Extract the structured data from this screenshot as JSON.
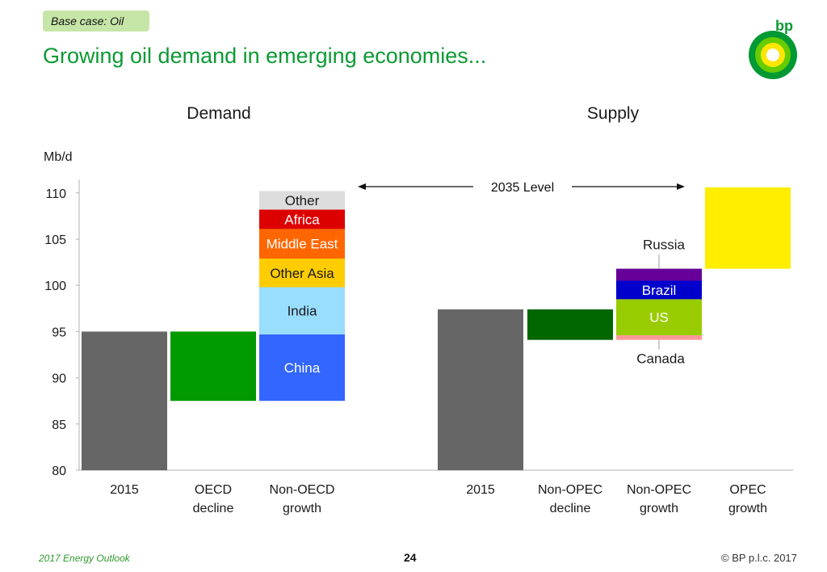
{
  "header": {
    "tag": "Base case: Oil",
    "title": "Growing oil demand in emerging economies..."
  },
  "logo": {
    "text": "bp"
  },
  "footer": {
    "left": "2017 Energy Outlook",
    "page": "24",
    "right": "© BP p.l.c. 2017"
  },
  "colors": {
    "gray": "#666666",
    "oecd": "#009900",
    "china": "#3366ff",
    "india": "#99ddff",
    "other_asia": "#ffcc00",
    "middle_east": "#ff6600",
    "africa": "#dd0000",
    "other": "#dddddd",
    "non_opec_decline": "#006600",
    "canada": "#ff9999",
    "us": "#99cc00",
    "brazil": "#0000cc",
    "russia": "#660099",
    "opec": "#ffee00",
    "title_green": "#0b9a33"
  },
  "chart_data": {
    "type": "bar",
    "subtype": "waterfall",
    "ylabel": "Mb/d",
    "ylim": [
      80,
      111
    ],
    "yticks": [
      80,
      85,
      90,
      95,
      100,
      105,
      110
    ],
    "panels": [
      {
        "title": "Demand",
        "categories": [
          "2015",
          "OECD decline",
          "Non-OECD growth"
        ]
      },
      {
        "title": "Supply",
        "categories": [
          "2015",
          "Non-OPEC decline",
          "Non-OPEC growth",
          "OPEC growth"
        ]
      }
    ],
    "bars": [
      {
        "category": "2015",
        "segments": [
          {
            "label": "",
            "from": 80,
            "to": 95,
            "color": "#666666"
          }
        ]
      },
      {
        "category": "OECD decline",
        "segments": [
          {
            "label": "",
            "from": 87.5,
            "to": 95,
            "color": "#009900"
          }
        ]
      },
      {
        "category": "Non-OECD growth",
        "segments": [
          {
            "label": "China",
            "from": 87.5,
            "to": 94.7,
            "color": "#3366ff",
            "text_color": "#ffffff"
          },
          {
            "label": "India",
            "from": 94.7,
            "to": 99.8,
            "color": "#99ddff",
            "text_color": "#1a1a1a"
          },
          {
            "label": "Other Asia",
            "from": 99.8,
            "to": 102.9,
            "color": "#ffcc00",
            "text_color": "#1a1a1a"
          },
          {
            "label": "Middle East",
            "from": 102.9,
            "to": 106.1,
            "color": "#ff6600",
            "text_color": "#ffffff"
          },
          {
            "label": "Africa",
            "from": 106.1,
            "to": 108.2,
            "color": "#dd0000",
            "text_color": "#ffffff"
          },
          {
            "label": "Other",
            "from": 108.2,
            "to": 110.2,
            "color": "#dddddd",
            "text_color": "#1a1a1a"
          }
        ]
      },
      {
        "category": "2015",
        "segments": [
          {
            "label": "",
            "from": 80,
            "to": 97.4,
            "color": "#666666"
          }
        ]
      },
      {
        "category": "Non-OPEC decline",
        "segments": [
          {
            "label": "",
            "from": 94.1,
            "to": 97.4,
            "color": "#006600"
          }
        ]
      },
      {
        "category": "Non-OPEC growth",
        "segments": [
          {
            "label": "Canada",
            "from": 94.1,
            "to": 94.6,
            "color": "#ff9999",
            "text_color": "#1a1a1a",
            "callout": "below"
          },
          {
            "label": "US",
            "from": 94.6,
            "to": 98.5,
            "color": "#99cc00",
            "text_color": "#ffffff"
          },
          {
            "label": "Brazil",
            "from": 98.5,
            "to": 100.5,
            "color": "#0000cc",
            "text_color": "#ffffff"
          },
          {
            "label": "Russia",
            "from": 100.5,
            "to": 101.8,
            "color": "#660099",
            "text_color": "#1a1a1a",
            "callout": "above"
          }
        ]
      },
      {
        "category": "OPEC growth",
        "segments": [
          {
            "label": "",
            "from": 101.8,
            "to": 110.6,
            "color": "#ffee00"
          }
        ]
      }
    ],
    "annotations": [
      {
        "text": "2035 Level",
        "value": 110.6
      }
    ]
  }
}
